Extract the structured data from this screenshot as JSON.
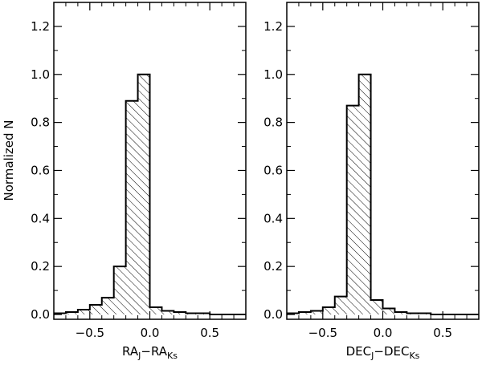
{
  "chart_data": [
    {
      "type": "bar",
      "ylabel": "Normalized N",
      "xlabel": {
        "main1": "RA",
        "sub1": "J",
        "dash": "−",
        "main2": "RA",
        "sub2": "Ks"
      },
      "xlim": [
        -0.8,
        0.8
      ],
      "ylim": [
        -0.02,
        1.3
      ],
      "xticks": [
        -0.5,
        0.0,
        0.5
      ],
      "xtick_labels": [
        "−0.5",
        "0.0",
        "0.5"
      ],
      "yticks": [
        0.0,
        0.2,
        0.4,
        0.6,
        0.8,
        1.0,
        1.2
      ],
      "ytick_labels": [
        "0.0",
        "0.2",
        "0.4",
        "0.6",
        "0.8",
        "1.0",
        "1.2"
      ],
      "hatched": true,
      "bin_edges": [
        -0.9,
        -0.8,
        -0.7,
        -0.6,
        -0.5,
        -0.4,
        -0.3,
        -0.2,
        -0.1,
        0.0,
        0.1,
        0.2,
        0.3,
        0.4,
        0.5,
        0.6,
        0.7,
        0.8,
        0.9
      ],
      "values": [
        0.0,
        0.005,
        0.01,
        0.02,
        0.04,
        0.07,
        0.2,
        0.89,
        1.0,
        0.03,
        0.015,
        0.01,
        0.005,
        0.005,
        0.0,
        0.0,
        0.0,
        0.0
      ]
    },
    {
      "type": "bar",
      "ylabel": "",
      "xlabel": {
        "main1": "DEC",
        "sub1": "J",
        "dash": "−",
        "main2": "DEC",
        "sub2": "Ks"
      },
      "xlim": [
        -0.8,
        0.8
      ],
      "ylim": [
        -0.02,
        1.3
      ],
      "xticks": [
        -0.5,
        0.0,
        0.5
      ],
      "xtick_labels": [
        "−0.5",
        "0.0",
        "0.5"
      ],
      "yticks": [
        0.0,
        0.2,
        0.4,
        0.6,
        0.8,
        1.0,
        1.2
      ],
      "ytick_labels": [
        "0.0",
        "0.2",
        "0.4",
        "0.6",
        "0.8",
        "1.0",
        "1.2"
      ],
      "hatched": true,
      "bin_edges": [
        -0.9,
        -0.8,
        -0.7,
        -0.6,
        -0.5,
        -0.4,
        -0.3,
        -0.2,
        -0.1,
        0.0,
        0.1,
        0.2,
        0.3,
        0.4,
        0.5,
        0.6,
        0.7,
        0.8,
        0.9
      ],
      "values": [
        0.0,
        0.005,
        0.01,
        0.015,
        0.03,
        0.075,
        0.87,
        1.0,
        0.06,
        0.025,
        0.01,
        0.005,
        0.005,
        0.0,
        0.0,
        0.0,
        0.0,
        0.0
      ]
    }
  ]
}
